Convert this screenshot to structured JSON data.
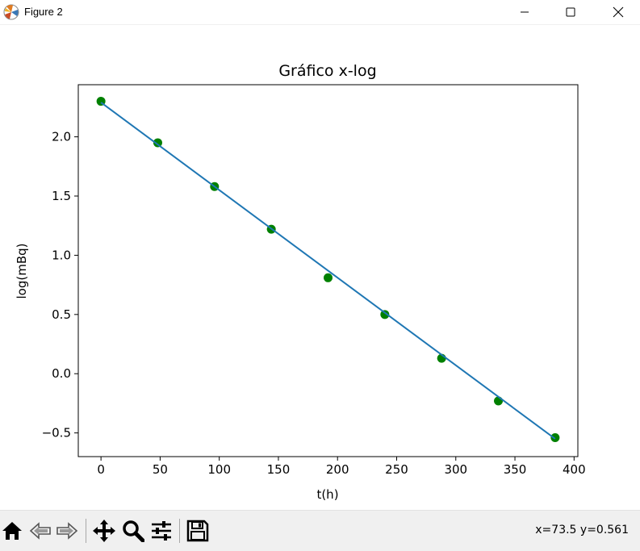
{
  "window": {
    "title": "Figure 2",
    "icons": [
      "matplotlib-logo-icon",
      "minimize-icon",
      "maximize-icon",
      "close-icon"
    ]
  },
  "chart_data": {
    "type": "line",
    "title": "Gráfico x-log",
    "xlabel": "t(h)",
    "ylabel": "log(mBq)",
    "xlim": [
      -19.2,
      403.2
    ],
    "ylim": [
      -0.7,
      2.44
    ],
    "xticks": [
      0,
      50,
      100,
      150,
      200,
      250,
      300,
      350,
      400
    ],
    "xtick_labels": [
      "0",
      "50",
      "100",
      "150",
      "200",
      "250",
      "300",
      "350",
      "400"
    ],
    "yticks": [
      -0.5,
      0.0,
      0.5,
      1.0,
      1.5,
      2.0
    ],
    "ytick_labels": [
      "−0.5",
      "0.0",
      "0.5",
      "1.0",
      "1.5",
      "2.0"
    ],
    "grid": false,
    "series": [
      {
        "kind": "scatter",
        "color": "#008000",
        "x": [
          0,
          48,
          96,
          144,
          192,
          240,
          288,
          336,
          384
        ],
        "y": [
          2.3,
          1.95,
          1.58,
          1.22,
          0.81,
          0.5,
          0.13,
          -0.23,
          -0.54
        ]
      },
      {
        "kind": "line",
        "color": "#1f77b4",
        "x": [
          0,
          384
        ],
        "y": [
          2.29,
          -0.55
        ]
      }
    ]
  },
  "toolbar": {
    "buttons": [
      "home-icon",
      "back-icon",
      "forward-icon",
      "pan-icon",
      "zoom-icon",
      "configure-subplots-icon",
      "save-icon"
    ],
    "coords": "x=73.5 y=0.561"
  }
}
